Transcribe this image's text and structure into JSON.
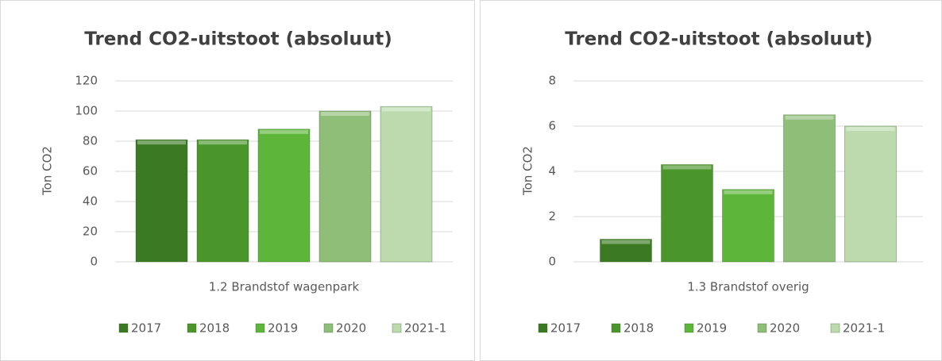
{
  "chart_data": [
    {
      "type": "bar",
      "title": "Trend CO2-uitstoot (absoluut)",
      "y_label": "Ton CO2",
      "categories": [
        "1.2 Brandstof wagenpark"
      ],
      "series": [
        {
          "name": "2017",
          "color": "#3b7a22",
          "values": [
            81
          ]
        },
        {
          "name": "2018",
          "color": "#4a962b",
          "values": [
            81
          ]
        },
        {
          "name": "2019",
          "color": "#5db53a",
          "values": [
            88
          ]
        },
        {
          "name": "2020",
          "color": "#8fbe78",
          "values": [
            100
          ]
        },
        {
          "name": "2021-1",
          "color": "#bcdaae",
          "values": [
            103
          ]
        }
      ],
      "ylim": [
        0,
        120
      ],
      "yticks": [
        0,
        20,
        40,
        60,
        80,
        100,
        120
      ],
      "grid": true,
      "legend": "bottom"
    },
    {
      "type": "bar",
      "title": "Trend CO2-uitstoot (absoluut)",
      "y_label": "Ton CO2",
      "categories": [
        "1.3 Brandstof overig"
      ],
      "series": [
        {
          "name": "2017",
          "color": "#3b7a22",
          "values": [
            1.0
          ]
        },
        {
          "name": "2018",
          "color": "#4a962b",
          "values": [
            4.3
          ]
        },
        {
          "name": "2019",
          "color": "#5db53a",
          "values": [
            3.2
          ]
        },
        {
          "name": "2020",
          "color": "#8fbe78",
          "values": [
            6.5
          ]
        },
        {
          "name": "2021-1",
          "color": "#bcdaae",
          "values": [
            6.0
          ]
        }
      ],
      "ylim": [
        0,
        8
      ],
      "yticks": [
        0,
        2,
        4,
        6,
        8
      ],
      "grid": true,
      "legend": "bottom"
    }
  ]
}
